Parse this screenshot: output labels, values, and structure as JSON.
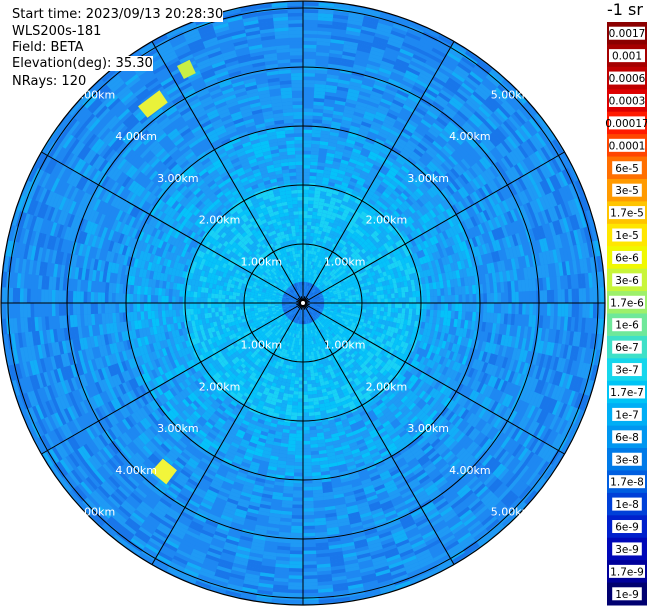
{
  "info": {
    "start_time": "Start time: 2023/09/13 20:28:30",
    "station": "WLS200s-181",
    "field": "Field: BETA",
    "elevation": "Elevation(deg): 35.30",
    "nrays": "NRays: 120"
  },
  "rings": {
    "labels": [
      "1.00km",
      "2.00km",
      "3.00km",
      "4.00km",
      "5.00km"
    ]
  },
  "colorbar": {
    "title": "-1 sr",
    "entries": [
      {
        "label": "0.0017",
        "color": "#8b0000"
      },
      {
        "label": "0.001",
        "color": "#a50000"
      },
      {
        "label": "0.0006",
        "color": "#c00000"
      },
      {
        "label": "0.0003",
        "color": "#dd0000"
      },
      {
        "label": "0.00017",
        "color": "#ff1a00"
      },
      {
        "label": "0.0001",
        "color": "#ff4500"
      },
      {
        "label": "6e-5",
        "color": "#ff6f00"
      },
      {
        "label": "3e-5",
        "color": "#ff9a00"
      },
      {
        "label": "1.7e-5",
        "color": "#ffc400"
      },
      {
        "label": "1e-5",
        "color": "#ffe600"
      },
      {
        "label": "6e-6",
        "color": "#f0f800"
      },
      {
        "label": "3e-6",
        "color": "#c8f53a"
      },
      {
        "label": "1.7e-6",
        "color": "#9df06a"
      },
      {
        "label": "1e-6",
        "color": "#6fe89a"
      },
      {
        "label": "6e-7",
        "color": "#3ee0c8"
      },
      {
        "label": "3e-7",
        "color": "#16d6ec"
      },
      {
        "label": "1.7e-7",
        "color": "#00c4f5"
      },
      {
        "label": "1e-7",
        "color": "#00aef5"
      },
      {
        "label": "6e-8",
        "color": "#0096f0"
      },
      {
        "label": "3e-8",
        "color": "#007ae8"
      },
      {
        "label": "1.7e-8",
        "color": "#005ee0"
      },
      {
        "label": "1e-8",
        "color": "#0040d8"
      },
      {
        "label": "6e-9",
        "color": "#0020cc"
      },
      {
        "label": "3e-9",
        "color": "#0008b8"
      },
      {
        "label": "1.7e-9",
        "color": "#00009a"
      },
      {
        "label": "1e-9",
        "color": "#000070"
      }
    ]
  }
}
